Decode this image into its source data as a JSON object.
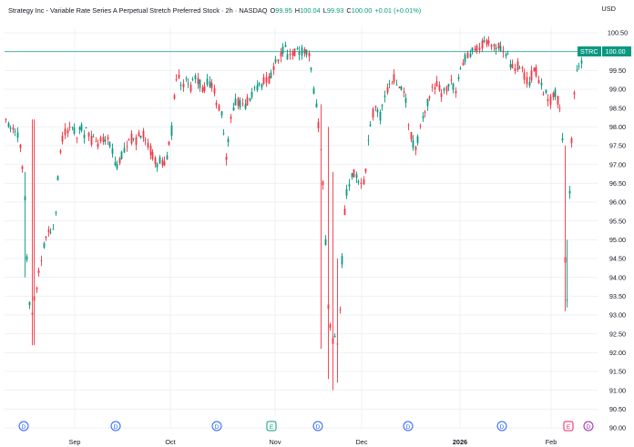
{
  "header": {
    "title": "Strategy Inc - Variable Rate Series A Perpetual Stretch Preferred Stock · 2h · NASDAQ",
    "open_label": "O",
    "open": "99.95",
    "high_label": "H",
    "high": "100.04",
    "low_label": "L",
    "low": "99.93",
    "close_label": "C",
    "close": "100.00",
    "change": "+0.01 (+0.01%)",
    "currency": "USD"
  },
  "last_price": {
    "symbol": "STRC",
    "value": "100.00"
  },
  "events": [
    {
      "label": "D",
      "type": "dividend"
    },
    {
      "label": "D",
      "type": "dividend"
    },
    {
      "label": "D",
      "type": "dividend"
    },
    {
      "label": "E",
      "type": "earnings"
    },
    {
      "label": "D",
      "type": "dividend"
    },
    {
      "label": "D",
      "type": "dividend"
    },
    {
      "label": "D",
      "type": "dividend"
    },
    {
      "label": "E",
      "type": "earnings"
    },
    {
      "label": "D",
      "type": "dividend"
    }
  ],
  "colors": {
    "up": "#089981",
    "down": "#f23645",
    "grid": "#eef0f4",
    "text": "#131722",
    "dividend": "#2962ff",
    "earnings": "#e91e63",
    "earnings_green": "#089981",
    "last_price_line": "#089981"
  },
  "chart_data": {
    "type": "candlestick",
    "title": "Strategy Inc - Variable Rate Series A Perpetual Stretch Preferred Stock · 2h · NASDAQ",
    "ylim": [
      90.0,
      100.7
    ],
    "y_ticks": [
      "100.50",
      "100.00",
      "99.50",
      "99.00",
      "98.50",
      "98.00",
      "97.50",
      "97.00",
      "96.50",
      "96.00",
      "95.50",
      "95.00",
      "94.50",
      "94.00",
      "93.50",
      "93.00",
      "92.50",
      "92.00",
      "91.50",
      "91.00",
      "90.50",
      "90.00"
    ],
    "x_ticks": [
      "Sep",
      "Oct",
      "Nov",
      "Dec",
      "2026",
      "Feb"
    ],
    "x_ticks_bold": [
      false,
      false,
      false,
      false,
      true,
      false
    ],
    "grid": true,
    "last_price": 100.0,
    "price_path": [
      [
        0,
        98.2
      ],
      [
        8,
        98.1
      ],
      [
        16,
        98.0
      ],
      [
        20,
        97.7
      ],
      [
        24,
        97.0
      ],
      [
        28,
        95.8
      ],
      [
        30,
        94.0
      ],
      [
        32,
        93.4
      ],
      [
        34,
        93.0
      ],
      [
        36,
        93.3
      ],
      [
        38,
        93.5
      ],
      [
        40,
        93.8
      ],
      [
        44,
        94.4
      ],
      [
        48,
        94.9
      ],
      [
        52,
        95.2
      ],
      [
        56,
        95.3
      ],
      [
        60,
        95.5
      ],
      [
        62,
        96.3
      ],
      [
        64,
        96.8
      ],
      [
        66,
        97.3
      ],
      [
        68,
        97.6
      ],
      [
        72,
        97.9
      ],
      [
        76,
        98.0
      ],
      [
        80,
        97.9
      ],
      [
        84,
        97.8
      ],
      [
        88,
        98.0
      ],
      [
        92,
        97.8
      ],
      [
        96,
        97.9
      ],
      [
        100,
        97.6
      ],
      [
        104,
        97.7
      ],
      [
        108,
        97.5
      ],
      [
        112,
        97.7
      ],
      [
        116,
        97.6
      ],
      [
        120,
        97.6
      ],
      [
        124,
        97.2
      ],
      [
        128,
        97.0
      ],
      [
        132,
        97.2
      ],
      [
        136,
        97.4
      ],
      [
        140,
        97.5
      ],
      [
        144,
        97.7
      ],
      [
        148,
        97.5
      ],
      [
        152,
        97.9
      ],
      [
        156,
        97.8
      ],
      [
        160,
        97.6
      ],
      [
        164,
        97.4
      ],
      [
        168,
        97.2
      ],
      [
        172,
        97.0
      ],
      [
        176,
        97.1
      ],
      [
        180,
        97.0
      ],
      [
        184,
        97.3
      ],
      [
        188,
        97.9
      ],
      [
        192,
        99.4
      ],
      [
        196,
        99.3
      ],
      [
        200,
        99.1
      ],
      [
        204,
        99.2
      ],
      [
        208,
        99.0
      ],
      [
        212,
        99.2
      ],
      [
        216,
        99.3
      ],
      [
        220,
        99.1
      ],
      [
        224,
        99.0
      ],
      [
        228,
        99.2
      ],
      [
        232,
        99.1
      ],
      [
        236,
        98.8
      ],
      [
        240,
        98.5
      ],
      [
        244,
        98.2
      ],
      [
        246,
        97.6
      ],
      [
        248,
        97.2
      ],
      [
        250,
        97.5
      ],
      [
        252,
        98.2
      ],
      [
        256,
        98.5
      ],
      [
        260,
        98.7
      ],
      [
        264,
        98.6
      ],
      [
        268,
        98.5
      ],
      [
        272,
        98.7
      ],
      [
        276,
        98.9
      ],
      [
        280,
        99.0
      ],
      [
        284,
        99.1
      ],
      [
        288,
        99.2
      ],
      [
        292,
        99.2
      ],
      [
        296,
        99.3
      ],
      [
        300,
        99.6
      ],
      [
        304,
        99.8
      ],
      [
        308,
        100.0
      ],
      [
        312,
        100.1
      ],
      [
        316,
        99.9
      ],
      [
        320,
        100.0
      ],
      [
        324,
        100.0
      ],
      [
        328,
        100.0
      ],
      [
        332,
        100.0
      ],
      [
        336,
        100.0
      ],
      [
        340,
        99.9
      ],
      [
        344,
        99.0
      ],
      [
        348,
        98.3
      ],
      [
        352,
        97.4
      ],
      [
        354,
        96.7
      ],
      [
        356,
        95.8
      ],
      [
        358,
        94.0
      ],
      [
        360,
        93.0
      ],
      [
        362,
        92.7
      ],
      [
        364,
        92.4
      ],
      [
        366,
        92.3
      ],
      [
        368,
        92.6
      ],
      [
        370,
        92.2
      ],
      [
        372,
        92.8
      ],
      [
        374,
        93.8
      ],
      [
        376,
        94.9
      ],
      [
        378,
        95.8
      ],
      [
        380,
        96.2
      ],
      [
        384,
        96.6
      ],
      [
        388,
        96.8
      ],
      [
        392,
        96.6
      ],
      [
        396,
        96.4
      ],
      [
        400,
        96.5
      ],
      [
        404,
        97.8
      ],
      [
        408,
        98.3
      ],
      [
        412,
        98.5
      ],
      [
        416,
        98.2
      ],
      [
        420,
        98.6
      ],
      [
        424,
        99.0
      ],
      [
        428,
        99.2
      ],
      [
        432,
        99.3
      ],
      [
        436,
        99.2
      ],
      [
        440,
        99.1
      ],
      [
        444,
        99.0
      ],
      [
        448,
        98.0
      ],
      [
        452,
        97.6
      ],
      [
        456,
        97.5
      ],
      [
        460,
        97.8
      ],
      [
        464,
        98.2
      ],
      [
        468,
        98.6
      ],
      [
        472,
        98.9
      ],
      [
        476,
        99.0
      ],
      [
        480,
        99.1
      ],
      [
        484,
        98.9
      ],
      [
        488,
        99.0
      ],
      [
        492,
        99.2
      ],
      [
        496,
        99.1
      ],
      [
        500,
        99.0
      ],
      [
        504,
        99.3
      ],
      [
        508,
        99.7
      ],
      [
        512,
        99.9
      ],
      [
        516,
        100.0
      ],
      [
        520,
        100.1
      ],
      [
        524,
        100.1
      ],
      [
        528,
        100.2
      ],
      [
        532,
        100.2
      ],
      [
        536,
        100.2
      ],
      [
        540,
        100.1
      ],
      [
        544,
        100.1
      ],
      [
        548,
        100.2
      ],
      [
        552,
        100.0
      ],
      [
        556,
        99.9
      ],
      [
        560,
        99.7
      ],
      [
        564,
        99.6
      ],
      [
        568,
        99.6
      ],
      [
        572,
        99.6
      ],
      [
        576,
        99.3
      ],
      [
        580,
        99.2
      ],
      [
        584,
        99.4
      ],
      [
        588,
        99.5
      ],
      [
        592,
        99.2
      ],
      [
        596,
        99.0
      ],
      [
        600,
        98.8
      ],
      [
        604,
        98.7
      ],
      [
        608,
        99.0
      ],
      [
        612,
        98.7
      ],
      [
        616,
        98.4
      ],
      [
        618,
        97.0
      ],
      [
        619,
        95.0
      ],
      [
        620,
        94.0
      ],
      [
        621,
        93.5
      ],
      [
        622,
        93.4
      ],
      [
        623,
        93.8
      ],
      [
        624,
        95.8
      ],
      [
        626,
        97.0
      ],
      [
        628,
        97.9
      ],
      [
        630,
        98.8
      ],
      [
        632,
        99.4
      ],
      [
        636,
        99.7
      ],
      [
        640,
        99.9
      ],
      [
        644,
        100.0
      ]
    ]
  }
}
